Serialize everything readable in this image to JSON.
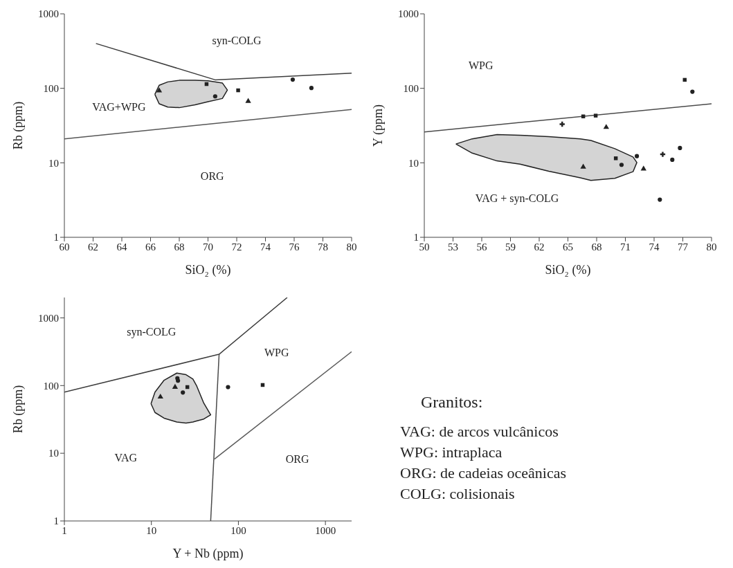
{
  "chart_data": [
    {
      "type": "scatter",
      "xlabel": "SiO₂ (%)",
      "ylabel": "Rb (ppm)",
      "log": "y",
      "grid": false,
      "legend": false,
      "xlim": [
        60,
        80
      ],
      "ylim": [
        1,
        1000
      ],
      "xticks": [
        60,
        62,
        64,
        66,
        68,
        70,
        72,
        74,
        76,
        78,
        80
      ],
      "yticks": [
        1,
        10,
        100,
        1000
      ],
      "series": [
        {
          "type": "area",
          "color": "#222222",
          "x": [
            66.3,
            66.6,
            67.2,
            68,
            69.1,
            70,
            71.0,
            71.35,
            71.0,
            70,
            69.1,
            68,
            67.2,
            66.6,
            66.3
          ],
          "values": [
            83,
            110,
            122,
            128,
            128,
            126,
            118,
            95,
            73,
            66,
            60,
            55,
            56,
            62,
            83
          ]
        },
        {
          "type": "line",
          "color": "#3c3c3c",
          "x": [
            62.2,
            70.5,
            80
          ],
          "values": [
            400,
            130,
            160
          ]
        },
        {
          "type": "line",
          "color": "#555555",
          "x": [
            60,
            80
          ],
          "values": [
            21,
            52
          ]
        },
        {
          "type": "scatter",
          "marker": "triangle",
          "color": "#222222",
          "x": [
            66.6,
            72.8
          ],
          "values": [
            93,
            67
          ]
        },
        {
          "type": "scatter",
          "marker": "square",
          "color": "#222222",
          "x": [
            69.9,
            72.1
          ],
          "values": [
            114,
            94
          ]
        },
        {
          "type": "scatter",
          "marker": "circle",
          "color": "#222222",
          "x": [
            70.5,
            75.9,
            77.2
          ],
          "values": [
            78,
            131,
            101
          ]
        }
      ],
      "annotations": [
        "syn-COLG",
        "VAG+WPG",
        "ORG"
      ]
    },
    {
      "type": "scatter",
      "xlabel": "SiO₂  (%)",
      "ylabel": "Y  (ppm)",
      "log": "y",
      "grid": false,
      "legend": false,
      "xlim": [
        50,
        80
      ],
      "ylim": [
        1,
        1000
      ],
      "xticks": [
        50,
        53,
        56,
        59,
        62,
        65,
        68,
        71,
        74,
        77,
        80
      ],
      "yticks": [
        1,
        10,
        100,
        1000
      ],
      "series": [
        {
          "type": "area",
          "color": "#222222",
          "x": [
            53.3,
            55,
            57.6,
            60,
            63,
            66.3,
            67.4,
            69.9,
            71.8,
            72.2,
            71.8,
            69.9,
            67.4,
            66.3,
            63,
            60,
            57.6,
            55,
            53.3
          ],
          "values": [
            17.9,
            21,
            24,
            23.5,
            22.5,
            21,
            20,
            15.5,
            12,
            10.1,
            7.6,
            6.2,
            5.8,
            6.3,
            7.7,
            9.6,
            10.6,
            13.5,
            17.9
          ]
        },
        {
          "type": "line",
          "color": "#4a4a4a",
          "x": [
            50,
            80
          ],
          "values": [
            26,
            62
          ]
        },
        {
          "type": "scatter",
          "marker": "triangle",
          "color": "#222222",
          "x": [
            66.6,
            72.9,
            69.0
          ],
          "values": [
            8.8,
            8.3,
            30
          ]
        },
        {
          "type": "scatter",
          "marker": "cross",
          "color": "#222222",
          "x": [
            64.4,
            74.9
          ],
          "values": [
            33,
            13
          ]
        },
        {
          "type": "scatter",
          "marker": "square",
          "color": "#222222",
          "x": [
            70.0,
            77.2,
            66.6,
            67.9
          ],
          "values": [
            11.5,
            130,
            42,
            43
          ]
        },
        {
          "type": "scatter",
          "marker": "circle",
          "color": "#222222",
          "x": [
            70.6,
            72.2,
            78.0,
            76.7,
            75.9,
            74.6
          ],
          "values": [
            9.4,
            12.3,
            90,
            15.8,
            11,
            3.2
          ]
        }
      ],
      "annotations": [
        "WPG",
        "VAG + syn-COLG"
      ]
    },
    {
      "type": "scatter",
      "xlabel": "Y + Nb  (ppm)",
      "ylabel": "Rb  (ppm)",
      "log": "xy",
      "grid": false,
      "legend": false,
      "xlim": [
        1,
        2000
      ],
      "ylim": [
        1,
        2000
      ],
      "xticks": [
        1,
        10,
        100,
        1000
      ],
      "yticks": [
        1,
        10,
        100,
        1000
      ],
      "series": [
        {
          "type": "area",
          "color": "#222222",
          "x": [
            9.9,
            11,
            14,
            19.6,
            25,
            30,
            33,
            40,
            48,
            40,
            33,
            30,
            25,
            19.6,
            14,
            11,
            9.9
          ],
          "values": [
            54,
            80,
            120,
            153,
            145,
            125,
            100,
            55,
            37,
            32,
            30,
            29,
            28,
            29,
            33,
            40,
            54
          ]
        },
        {
          "type": "line",
          "color": "#3c3c3c",
          "x": [
            1,
            60,
            364
          ],
          "values": [
            80,
            290,
            2000
          ]
        },
        {
          "type": "line",
          "color": "#4a4a4a",
          "x": [
            60,
            48
          ],
          "values": [
            290,
            1
          ]
        },
        {
          "type": "line",
          "color": "#5a5a5a",
          "x": [
            53,
            2000
          ],
          "values": [
            8.2,
            316
          ]
        },
        {
          "type": "scatter",
          "marker": "triangle",
          "color": "#222222",
          "x": [
            12.7,
            18.7
          ],
          "values": [
            68,
            95
          ]
        },
        {
          "type": "scatter",
          "marker": "square",
          "color": "#222222",
          "x": [
            25.9,
            190
          ],
          "values": [
            95,
            102
          ]
        },
        {
          "type": "scatter",
          "marker": "circle",
          "color": "#222222",
          "x": [
            19.9,
            20.2,
            23,
            76
          ],
          "values": [
            128,
            118,
            79,
            95
          ]
        }
      ],
      "annotations": [
        "syn-COLG",
        "WPG",
        "VAG",
        "ORG"
      ]
    },
    {
      "type": "other",
      "title": "Granitos:",
      "annotations": [
        "VAG: de arcos vulcânicos",
        "WPG: intraplaca",
        "ORG: de cadeias oceânicas",
        "COLG: colisionais"
      ]
    }
  ]
}
